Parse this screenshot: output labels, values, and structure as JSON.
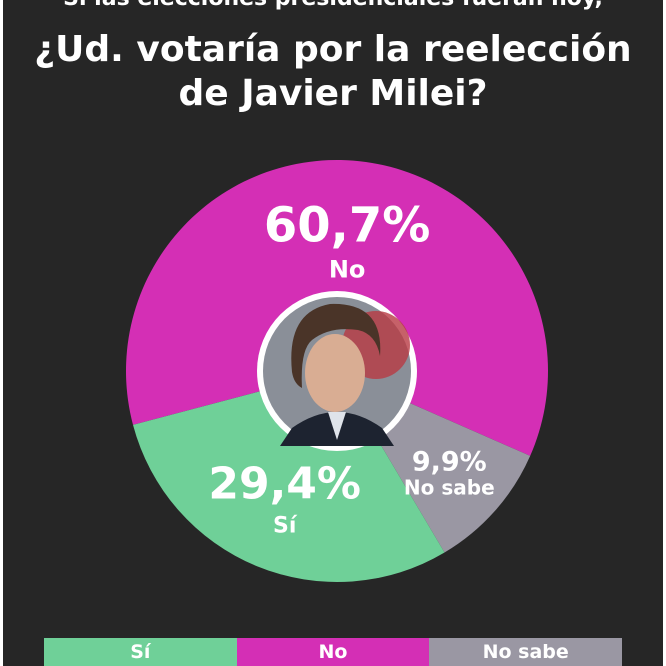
{
  "header": {
    "top_text_cut": "Si las elecciones presidenciales fueran hoy,",
    "title_line1": "¿Ud. votaría por la reelección",
    "title_line2": "de Javier Milei?"
  },
  "chart_data": {
    "type": "pie",
    "title": "¿Ud. votaría por la reelección de Javier Milei?",
    "slices": [
      {
        "label": "No",
        "value": 60.7,
        "display": "60,7%",
        "color": "#d42fb5"
      },
      {
        "label": "No sabe",
        "value": 9.9,
        "display": "9,9%",
        "color": "#9a97a3"
      },
      {
        "label": "Sí",
        "value": 29.4,
        "display": "29,4%",
        "color": "#6fd098"
      }
    ],
    "legend": [
      {
        "label": "Sí",
        "color": "#6fd098"
      },
      {
        "label": "No",
        "color": "#d42fb5"
      },
      {
        "label": "No sabe",
        "color": "#9a97a3"
      }
    ]
  },
  "colors": {
    "background": "#262626",
    "portrait_ring": "#ffffff"
  }
}
